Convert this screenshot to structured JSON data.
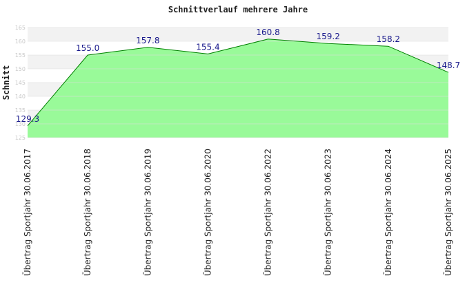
{
  "chart_data": {
    "type": "area",
    "title": "Schnittverlauf mehrere Jahre",
    "ylabel": "Schnitt",
    "xlabel": "",
    "categories": [
      "Übertrag Sportjahr 30.06.2017",
      "Übertrag Sportjahr 30.06.2018",
      "Übertrag Sportjahr 30.06.2019",
      "Übertrag Sportjahr 30.06.2020",
      "Übertrag Sportjahr 30.06.2022",
      "Übertrag Sportjahr 30.06.2023",
      "Übertrag Sportjahr 30.06.2024",
      "Übertrag Sportjahr 30.06.2025"
    ],
    "values": [
      129.3,
      155.0,
      157.8,
      155.4,
      160.8,
      159.2,
      158.2,
      148.7
    ],
    "value_labels": [
      "129.3",
      "155.0",
      "157.8",
      "155.4",
      "160.8",
      "159.2",
      "158.2",
      "148.7"
    ],
    "ylim": [
      125,
      165
    ],
    "yticks": [
      125,
      130,
      135,
      140,
      145,
      150,
      155,
      160,
      165
    ],
    "grid": true,
    "colors": {
      "fill": "#99fa99",
      "line": "#008000",
      "data_label": "#1a1a8c",
      "band_light": "#f2f2f2",
      "band_white": "#ffffff"
    }
  }
}
